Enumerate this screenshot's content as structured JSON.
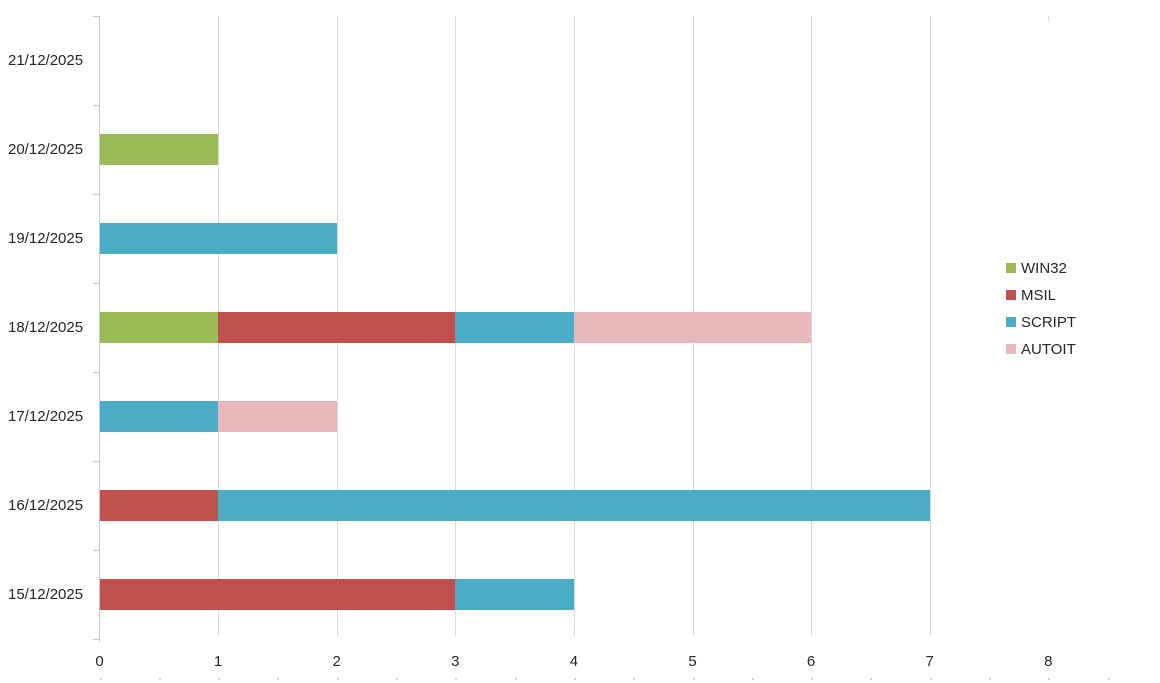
{
  "chart_data": {
    "type": "bar",
    "orientation": "horizontal",
    "stacked": true,
    "title": "",
    "xlabel": "",
    "ylabel": "",
    "categories": [
      "21/12/2025",
      "20/12/2025",
      "19/12/2025",
      "18/12/2025",
      "17/12/2025",
      "16/12/2025",
      "15/12/2025"
    ],
    "series": [
      {
        "name": "WIN32",
        "color": "#9BBB59",
        "values": [
          0,
          1,
          0,
          1,
          0,
          0,
          0
        ]
      },
      {
        "name": "MSIL",
        "color": "#C0504D",
        "values": [
          0,
          0,
          0,
          2,
          0,
          1,
          3
        ]
      },
      {
        "name": "SCRIPT",
        "color": "#4BACC6",
        "values": [
          0,
          0,
          2,
          1,
          1,
          6,
          1
        ]
      },
      {
        "name": "AUTOIT",
        "color": "#E6B8B9",
        "values": [
          0,
          0,
          0,
          2,
          1,
          0,
          0
        ]
      }
    ],
    "totals_by_category": [
      0,
      1,
      2,
      6,
      2,
      7,
      4
    ],
    "xlim": [
      0,
      8
    ],
    "x_ticks": [
      "0",
      "1",
      "2",
      "3",
      "4",
      "5",
      "6",
      "7",
      "8"
    ],
    "grid": true,
    "legend_position": "right"
  },
  "style": {
    "background": "#FFFFFF",
    "text_color": "#262626",
    "gridline_color": "#D9D9D9",
    "axis_color": "#C6C6C6"
  }
}
